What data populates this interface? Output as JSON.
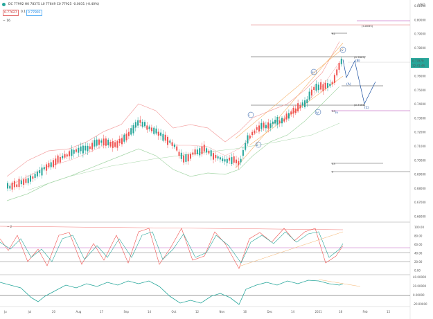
{
  "header": {
    "ohlc": "DC 77992 H0 78375 L0 77649 C0 77925 -0.0031 (-0.40%)",
    "price_box": "0.77627",
    "mid": "0.1",
    "price_box2": "0.77891",
    "indicator": "− 16",
    "currency": "USD"
  },
  "price_axis": [
    "0.81000",
    "0.80000",
    "0.79000",
    "0.78000",
    "0.77000",
    "0.76000",
    "0.75000",
    "0.74000",
    "0.73000",
    "0.72000",
    "0.71000",
    "0.70000",
    "0.69000",
    "0.68000",
    "0.67000",
    "0.66000"
  ],
  "price_tags": {
    "top": "0.81000",
    "current": "0.77879",
    "timer": "12:41:44"
  },
  "osc_axis": [
    "100.00",
    "80.00",
    "60.00",
    "40.00",
    "20.00",
    "0.00"
  ],
  "osc_label": "− 2",
  "osc2_axis": [
    "40.00000",
    "20.00000",
    "0.00000",
    "-20.00000"
  ],
  "time_axis": [
    "Ju",
    "Jul",
    "20",
    "Aug",
    "17",
    "Sep",
    "14",
    "Oct",
    "12",
    "Nov",
    "16",
    "Dec",
    "14",
    "2021",
    "18",
    "Feb",
    "15"
  ],
  "levels": [
    "(0.8095)",
    "(0.7805)",
    "(0.7495)",
    "R1",
    "R3",
    "S3",
    "P"
  ],
  "waves": [
    "iii",
    "iv",
    "v",
    "(B)",
    "(A)",
    "(C)",
    "i",
    "ii",
    "iv"
  ],
  "colors": {
    "up": "#26a69a",
    "down": "#ef5350",
    "bb_upper": "#f4a3a3",
    "bb_lower": "#a5d6a7",
    "channel": "#f6b26b",
    "wave": "#1a4fa0"
  }
}
